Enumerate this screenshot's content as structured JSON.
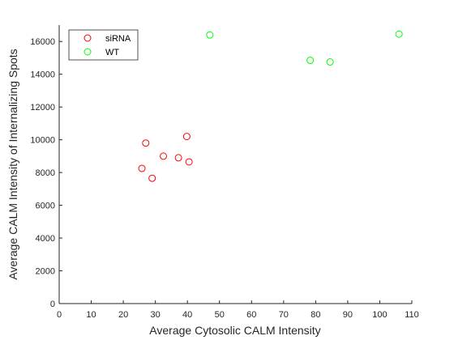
{
  "chart_data": {
    "type": "scatter",
    "title": "",
    "xlabel": "Average Cytosolic CALM Intensity",
    "ylabel": "Average CALM Intensity of Internalizing Spots",
    "xlim": [
      0,
      110
    ],
    "ylim": [
      0,
      17000
    ],
    "xticks": [
      0,
      10,
      20,
      30,
      40,
      50,
      60,
      70,
      80,
      90,
      100,
      110
    ],
    "yticks": [
      0,
      2000,
      4000,
      6000,
      8000,
      10000,
      12000,
      14000,
      16000
    ],
    "grid": false,
    "legend_position": "top-left",
    "series": [
      {
        "name": "siRNA",
        "color": "#ff0000",
        "marker": "circle-open",
        "x": [
          25.8,
          27.0,
          29.0,
          32.5,
          37.2,
          39.8,
          40.5
        ],
        "y": [
          8250,
          9800,
          7650,
          9000,
          8900,
          10200,
          8650
        ]
      },
      {
        "name": "WT",
        "color": "#00ff00",
        "marker": "circle-open",
        "x": [
          47.0,
          78.3,
          84.5,
          106.0
        ],
        "y": [
          16400,
          14850,
          14750,
          16450
        ]
      }
    ]
  }
}
